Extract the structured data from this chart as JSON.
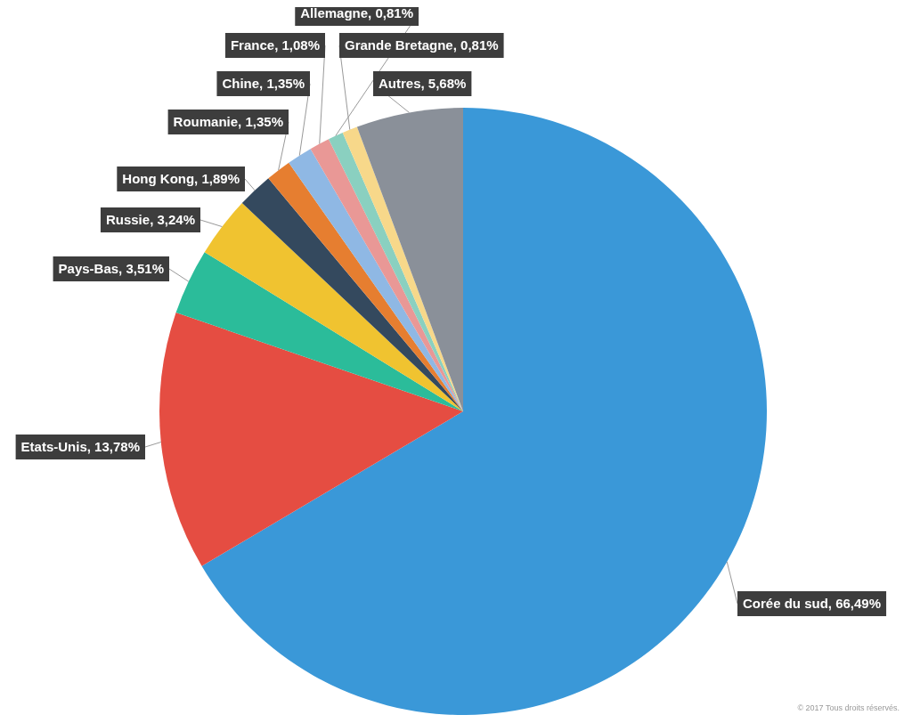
{
  "chart_data": {
    "type": "pie",
    "categories": [
      "Corée du sud",
      "Etats-Unis",
      "Pays-Bas",
      "Russie",
      "Hong Kong",
      "Roumanie",
      "Chine",
      "France",
      "Allemagne",
      "Grande Bretagne",
      "Autres"
    ],
    "values": [
      66.49,
      13.78,
      3.51,
      3.24,
      1.89,
      1.35,
      1.35,
      1.08,
      0.81,
      0.81,
      5.68
    ],
    "value_labels": [
      "66,49%",
      "13,78%",
      "3,51%",
      "3,24%",
      "1,89%",
      "1,35%",
      "1,35%",
      "1,08%",
      "0,81%",
      "0,81%",
      "5,68%"
    ],
    "colors": [
      "#3a98d8",
      "#e54d42",
      "#2bbc9a",
      "#f0c330",
      "#34495e",
      "#e67e30",
      "#8fb8e4",
      "#e99896",
      "#8ad0c0",
      "#f7d88a",
      "#8a9099"
    ],
    "annotations": [
      "© 2017 Tous droits réservés."
    ]
  }
}
